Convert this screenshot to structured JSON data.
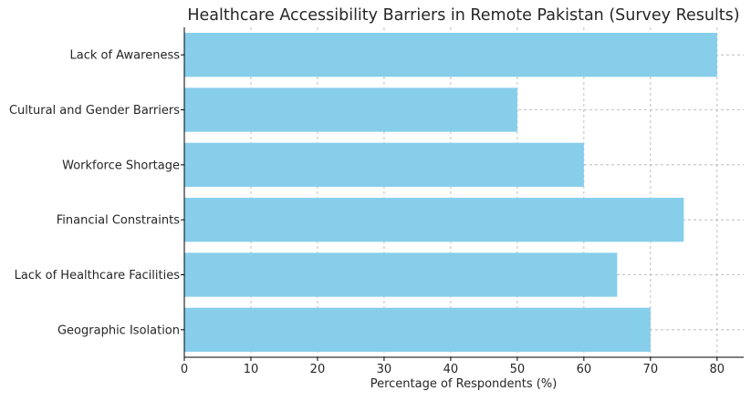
{
  "chart_data": {
    "type": "bar",
    "orientation": "horizontal",
    "title": "Healthcare Accessibility Barriers in Remote Pakistan (Survey Results)",
    "xlabel": "Percentage of Respondents (%)",
    "ylabel": "",
    "categories": [
      "Geographic Isolation",
      "Lack of Healthcare Facilities",
      "Financial Constraints",
      "Workforce Shortage",
      "Cultural and Gender Barriers",
      "Lack of Awareness"
    ],
    "values": [
      70,
      65,
      75,
      60,
      50,
      80
    ],
    "xlim": [
      0,
      84
    ],
    "xticks": [
      0,
      10,
      20,
      30,
      40,
      50,
      60,
      70,
      80
    ],
    "grid": true,
    "bar_color": "#87ceeb"
  }
}
